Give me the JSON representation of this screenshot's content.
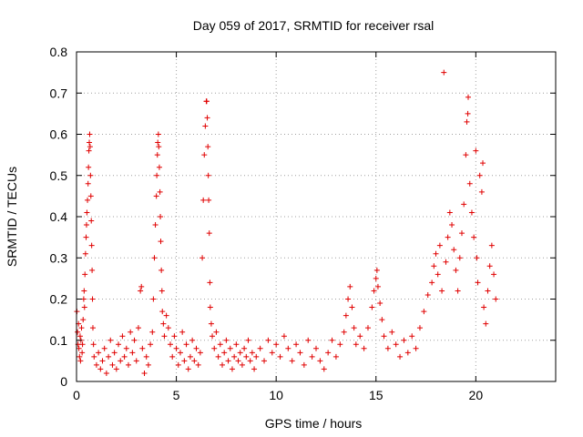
{
  "chart_data": {
    "type": "scatter",
    "title": "Day 059 of 2017, SRMTID for receiver rsal",
    "xlabel": "GPS time / hours",
    "ylabel": "SRMTID / TECUs",
    "xlim": [
      0,
      24
    ],
    "ylim": [
      0,
      0.8
    ],
    "xticks": [
      0,
      5,
      10,
      15,
      20
    ],
    "xtick_labels": [
      "0",
      "5",
      "10",
      "15",
      "20"
    ],
    "yticks": [
      0,
      0.1,
      0.2,
      0.3,
      0.4,
      0.5,
      0.6,
      0.7,
      0.8
    ],
    "ytick_labels": [
      "0",
      "0.1",
      "0.2",
      "0.3",
      "0.4",
      "0.5",
      "0.6",
      "0.7",
      "0.8"
    ],
    "grid": true,
    "marker": "+",
    "color": "#e00000",
    "series": [
      {
        "name": "SRMTID",
        "points": [
          [
            0.02,
            0.17
          ],
          [
            0.05,
            0.12
          ],
          [
            0.08,
            0.09
          ],
          [
            0.1,
            0.14
          ],
          [
            0.12,
            0.08
          ],
          [
            0.15,
            0.06
          ],
          [
            0.18,
            0.11
          ],
          [
            0.2,
            0.05
          ],
          [
            0.22,
            0.1
          ],
          [
            0.25,
            0.13
          ],
          [
            0.28,
            0.07
          ],
          [
            0.3,
            0.09
          ],
          [
            0.33,
            0.15
          ],
          [
            0.36,
            0.2
          ],
          [
            0.38,
            0.22
          ],
          [
            0.4,
            0.18
          ],
          [
            0.42,
            0.26
          ],
          [
            0.45,
            0.31
          ],
          [
            0.48,
            0.35
          ],
          [
            0.5,
            0.38
          ],
          [
            0.52,
            0.41
          ],
          [
            0.55,
            0.44
          ],
          [
            0.58,
            0.48
          ],
          [
            0.6,
            0.52
          ],
          [
            0.62,
            0.56
          ],
          [
            0.64,
            0.58
          ],
          [
            0.66,
            0.6
          ],
          [
            0.68,
            0.57
          ],
          [
            0.7,
            0.5
          ],
          [
            0.72,
            0.45
          ],
          [
            0.74,
            0.39
          ],
          [
            0.76,
            0.33
          ],
          [
            0.78,
            0.27
          ],
          [
            0.8,
            0.2
          ],
          [
            0.82,
            0.13
          ],
          [
            0.85,
            0.09
          ],
          [
            0.88,
            0.06
          ],
          [
            1.0,
            0.04
          ],
          [
            1.1,
            0.07
          ],
          [
            1.2,
            0.03
          ],
          [
            1.3,
            0.05
          ],
          [
            1.4,
            0.08
          ],
          [
            1.5,
            0.02
          ],
          [
            1.6,
            0.06
          ],
          [
            1.7,
            0.1
          ],
          [
            1.8,
            0.04
          ],
          [
            1.9,
            0.07
          ],
          [
            2.0,
            0.03
          ],
          [
            2.1,
            0.09
          ],
          [
            2.2,
            0.05
          ],
          [
            2.3,
            0.11
          ],
          [
            2.4,
            0.06
          ],
          [
            2.5,
            0.08
          ],
          [
            2.6,
            0.04
          ],
          [
            2.7,
            0.12
          ],
          [
            2.8,
            0.07
          ],
          [
            2.9,
            0.1
          ],
          [
            3.0,
            0.05
          ],
          [
            3.1,
            0.13
          ],
          [
            3.2,
            0.22
          ],
          [
            3.25,
            0.23
          ],
          [
            3.3,
            0.08
          ],
          [
            3.4,
            0.02
          ],
          [
            3.5,
            0.06
          ],
          [
            3.6,
            0.04
          ],
          [
            3.7,
            0.09
          ],
          [
            3.8,
            0.12
          ],
          [
            3.85,
            0.2
          ],
          [
            3.9,
            0.3
          ],
          [
            3.95,
            0.38
          ],
          [
            4.0,
            0.45
          ],
          [
            4.02,
            0.5
          ],
          [
            4.05,
            0.55
          ],
          [
            4.07,
            0.58
          ],
          [
            4.1,
            0.6
          ],
          [
            4.12,
            0.57
          ],
          [
            4.15,
            0.52
          ],
          [
            4.18,
            0.46
          ],
          [
            4.2,
            0.4
          ],
          [
            4.22,
            0.34
          ],
          [
            4.25,
            0.27
          ],
          [
            4.28,
            0.22
          ],
          [
            4.3,
            0.17
          ],
          [
            4.35,
            0.14
          ],
          [
            4.4,
            0.11
          ],
          [
            4.5,
            0.16
          ],
          [
            4.6,
            0.13
          ],
          [
            4.7,
            0.09
          ],
          [
            4.8,
            0.06
          ],
          [
            4.9,
            0.11
          ],
          [
            5.0,
            0.08
          ],
          [
            5.1,
            0.04
          ],
          [
            5.2,
            0.07
          ],
          [
            5.3,
            0.12
          ],
          [
            5.4,
            0.05
          ],
          [
            5.5,
            0.09
          ],
          [
            5.6,
            0.03
          ],
          [
            5.7,
            0.06
          ],
          [
            5.8,
            0.1
          ],
          [
            5.9,
            0.05
          ],
          [
            6.0,
            0.08
          ],
          [
            6.1,
            0.04
          ],
          [
            6.2,
            0.07
          ],
          [
            6.3,
            0.3
          ],
          [
            6.35,
            0.44
          ],
          [
            6.4,
            0.55
          ],
          [
            6.45,
            0.62
          ],
          [
            6.5,
            0.68
          ],
          [
            6.52,
            0.68
          ],
          [
            6.55,
            0.64
          ],
          [
            6.58,
            0.57
          ],
          [
            6.6,
            0.5
          ],
          [
            6.62,
            0.44
          ],
          [
            6.65,
            0.36
          ],
          [
            6.68,
            0.24
          ],
          [
            6.7,
            0.18
          ],
          [
            6.75,
            0.14
          ],
          [
            6.8,
            0.11
          ],
          [
            6.9,
            0.08
          ],
          [
            7.0,
            0.12
          ],
          [
            7.1,
            0.06
          ],
          [
            7.2,
            0.09
          ],
          [
            7.3,
            0.04
          ],
          [
            7.4,
            0.07
          ],
          [
            7.5,
            0.1
          ],
          [
            7.6,
            0.05
          ],
          [
            7.7,
            0.08
          ],
          [
            7.8,
            0.03
          ],
          [
            7.9,
            0.06
          ],
          [
            8.0,
            0.09
          ],
          [
            8.1,
            0.05
          ],
          [
            8.2,
            0.07
          ],
          [
            8.3,
            0.04
          ],
          [
            8.4,
            0.08
          ],
          [
            8.5,
            0.06
          ],
          [
            8.6,
            0.1
          ],
          [
            8.7,
            0.05
          ],
          [
            8.8,
            0.07
          ],
          [
            8.9,
            0.03
          ],
          [
            9.0,
            0.06
          ],
          [
            9.2,
            0.08
          ],
          [
            9.4,
            0.05
          ],
          [
            9.6,
            0.1
          ],
          [
            9.8,
            0.07
          ],
          [
            10.0,
            0.09
          ],
          [
            10.2,
            0.06
          ],
          [
            10.4,
            0.11
          ],
          [
            10.6,
            0.08
          ],
          [
            10.8,
            0.05
          ],
          [
            11.0,
            0.09
          ],
          [
            11.2,
            0.07
          ],
          [
            11.4,
            0.04
          ],
          [
            11.6,
            0.1
          ],
          [
            11.8,
            0.06
          ],
          [
            12.0,
            0.08
          ],
          [
            12.2,
            0.05
          ],
          [
            12.4,
            0.03
          ],
          [
            12.6,
            0.07
          ],
          [
            12.8,
            0.1
          ],
          [
            13.0,
            0.06
          ],
          [
            13.2,
            0.09
          ],
          [
            13.4,
            0.12
          ],
          [
            13.5,
            0.16
          ],
          [
            13.6,
            0.2
          ],
          [
            13.7,
            0.23
          ],
          [
            13.8,
            0.18
          ],
          [
            13.9,
            0.13
          ],
          [
            14.0,
            0.09
          ],
          [
            14.2,
            0.11
          ],
          [
            14.4,
            0.08
          ],
          [
            14.6,
            0.13
          ],
          [
            14.8,
            0.18
          ],
          [
            14.9,
            0.22
          ],
          [
            15.0,
            0.25
          ],
          [
            15.05,
            0.27
          ],
          [
            15.1,
            0.23
          ],
          [
            15.2,
            0.19
          ],
          [
            15.3,
            0.15
          ],
          [
            15.4,
            0.11
          ],
          [
            15.6,
            0.08
          ],
          [
            15.8,
            0.12
          ],
          [
            16.0,
            0.09
          ],
          [
            16.2,
            0.06
          ],
          [
            16.4,
            0.1
          ],
          [
            16.6,
            0.07
          ],
          [
            16.8,
            0.11
          ],
          [
            17.0,
            0.08
          ],
          [
            17.2,
            0.13
          ],
          [
            17.4,
            0.17
          ],
          [
            17.6,
            0.21
          ],
          [
            17.8,
            0.24
          ],
          [
            17.9,
            0.28
          ],
          [
            18.0,
            0.31
          ],
          [
            18.1,
            0.26
          ],
          [
            18.2,
            0.33
          ],
          [
            18.3,
            0.22
          ],
          [
            18.4,
            0.75
          ],
          [
            18.5,
            0.29
          ],
          [
            18.6,
            0.35
          ],
          [
            18.7,
            0.41
          ],
          [
            18.8,
            0.38
          ],
          [
            18.9,
            0.32
          ],
          [
            19.0,
            0.27
          ],
          [
            19.1,
            0.22
          ],
          [
            19.2,
            0.3
          ],
          [
            19.3,
            0.36
          ],
          [
            19.4,
            0.43
          ],
          [
            19.5,
            0.55
          ],
          [
            19.55,
            0.63
          ],
          [
            19.6,
            0.65
          ],
          [
            19.62,
            0.69
          ],
          [
            19.7,
            0.48
          ],
          [
            19.8,
            0.41
          ],
          [
            19.9,
            0.35
          ],
          [
            20.0,
            0.56
          ],
          [
            20.05,
            0.3
          ],
          [
            20.1,
            0.24
          ],
          [
            20.2,
            0.5
          ],
          [
            20.3,
            0.46
          ],
          [
            20.35,
            0.53
          ],
          [
            20.4,
            0.18
          ],
          [
            20.5,
            0.14
          ],
          [
            20.6,
            0.22
          ],
          [
            20.7,
            0.28
          ],
          [
            20.8,
            0.33
          ],
          [
            20.9,
            0.26
          ],
          [
            21.0,
            0.2
          ]
        ]
      }
    ]
  }
}
